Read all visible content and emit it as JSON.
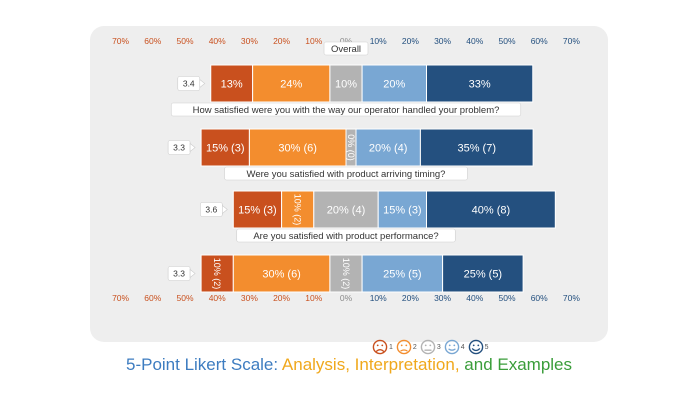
{
  "chart_data": {
    "type": "bar",
    "stacked": true,
    "layout": "diverging-horizontal",
    "axis_ticks_left": [
      "70%",
      "60%",
      "50%",
      "40%",
      "30%",
      "20%",
      "10%",
      "0%"
    ],
    "axis_ticks_right": [
      "10%",
      "20%",
      "30%",
      "40%",
      "50%",
      "60%",
      "70%"
    ],
    "xlim": [
      -70,
      70
    ],
    "grid": false,
    "series_colors": [
      "#c9501e",
      "#f38d2e",
      "#b3b3b3",
      "#79a7d3",
      "#24507f"
    ],
    "categories": [
      {
        "title": "Overall",
        "score": "3.4",
        "segments": [
          {
            "value": 13,
            "label": "13%"
          },
          {
            "value": 24,
            "label": "24%"
          },
          {
            "value": 10,
            "label": "10%"
          },
          {
            "value": 20,
            "label": "20%"
          },
          {
            "value": 33,
            "label": "33%"
          }
        ]
      },
      {
        "title": "How satisfied were you with the way our operator handled your problem?",
        "score": "3.3",
        "segments": [
          {
            "value": 15,
            "label": "15% (3)"
          },
          {
            "value": 30,
            "label": "30% (6)"
          },
          {
            "value": 0,
            "label": "0% (0)",
            "rotated": true
          },
          {
            "value": 20,
            "label": "20% (4)"
          },
          {
            "value": 35,
            "label": "35% (7)"
          }
        ]
      },
      {
        "title": "Were you satisfied with product arriving timing?",
        "score": "3.6",
        "segments": [
          {
            "value": 15,
            "label": "15% (3)"
          },
          {
            "value": 10,
            "label": "10% (2)",
            "rotated": true
          },
          {
            "value": 20,
            "label": "20% (4)"
          },
          {
            "value": 15,
            "label": "15% (3)"
          },
          {
            "value": 40,
            "label": "40% (8)"
          }
        ]
      },
      {
        "title": "Are you satisfied with product performance?",
        "score": "3.3",
        "segments": [
          {
            "value": 10,
            "label": "10% (2)",
            "rotated": true
          },
          {
            "value": 30,
            "label": "30% (6)"
          },
          {
            "value": 10,
            "label": "10% (2)",
            "rotated": true
          },
          {
            "value": 25,
            "label": "25% (5)"
          },
          {
            "value": 25,
            "label": "25% (5)"
          }
        ]
      }
    ]
  },
  "legend": {
    "items": [
      {
        "icon": "very-dissatisfied-face-icon",
        "number": "1",
        "color": "#c9501e"
      },
      {
        "icon": "dissatisfied-face-icon",
        "number": "2",
        "color": "#f38d2e"
      },
      {
        "icon": "neutral-face-icon",
        "number": "3",
        "color": "#b3b3b3"
      },
      {
        "icon": "satisfied-face-icon",
        "number": "4",
        "color": "#79a7d3"
      },
      {
        "icon": "very-satisfied-face-icon",
        "number": "5",
        "color": "#24507f"
      }
    ]
  },
  "caption": {
    "part1": "5-Point Likert Scale: ",
    "part2": "Analysis, Interpretation,",
    "part3": " and Examples",
    "color1": "#3d7cc0",
    "color2": "#f0a81c",
    "color3": "#3a9d3a"
  }
}
